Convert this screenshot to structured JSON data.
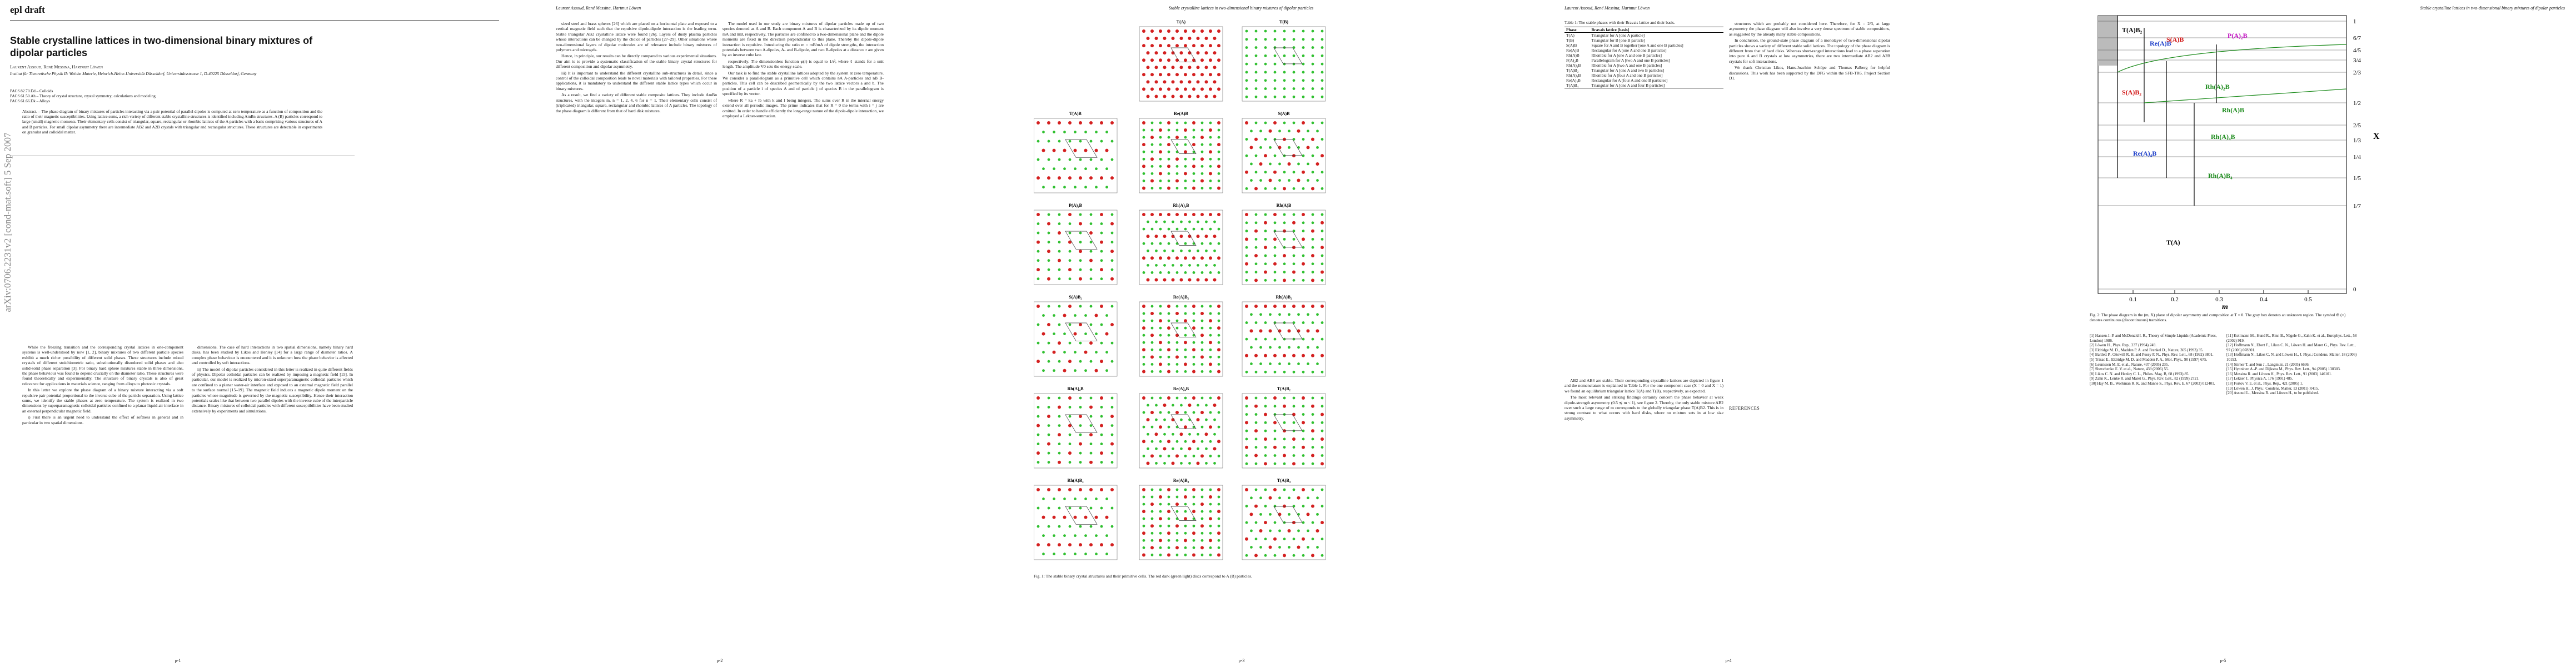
{
  "page1": {
    "running_head": "epl draft",
    "title": "Stable crystalline lattices in two-dimensional binary mixtures of dipolar particles",
    "authors": "Laurent Assoud, René Messina, Hartmut Löwen",
    "affiliation": "Institut für Theoretische Physik II: Weiche Materie, Heinrich-Heine-Universität Düsseldorf, Universitätsstrasse 1, D-40225 Düsseldorf, Germany",
    "pacs": [
      "PACS 82.70.Dd – Colloids",
      "PACS 61.50.Ah – Theory of crystal structure, crystal symmetry; calculations and modeling",
      "PACS 61.66.Dk – Alloys"
    ],
    "abstract": "Abstract. – The phase diagram of binary mixtures of particles interacting via a pair potential of parallel dipoles is computed at zero temperature as a function of composition and the ratio of their magnetic susceptibilities. Using lattice sums, a rich variety of different stable crystalline structures is identified including AmBn structures. A (B) particles correspond to large (small) magnetic moments. Their elementary cells consist of triangular, square, rectangular or rhombic lattices of the A particles with a basis comprising various structures of A and B particles. For small dipolar asymmetry there are intermediate AB2 and A2B crystals with triangular and rectangular structures. These structures are detectable in experiments on granular and colloidal matter.",
    "arxiv": "arXiv:0706.2231v2  [cond-mat.soft]  5 Sep 2007",
    "column1": [
      "While the freezing transition and the corresponding crystal lattices in one-component systems is well-understood by now [1, 2], binary mixtures of two different particle species exhibit a much richer possibility of different solid phases. These structures include mixed crystals of different stoichiometric ratio, substitutionally disordered solid phases and also solid-solid phase separation [3]. For binary hard sphere mixtures stable in three dimensions, the phase behaviour was found to depend crucially on the diameter ratio. These structures were found theoretically and experimentally. The structure of binary crystals is also of great relevance for applications in materials science, ranging from alloys to photonic crystals.",
      "In this letter we explore the phase diagram of a binary mixture interacting via a soft repulsive pair potential proportional to the inverse cube of the particle separation. Using lattice sums, we identify the stable phases at zero temperature. The system is realized in two dimensions by superparamagnetic colloidal particles confined to a planar liquid-air interface in an external perpendicular magnetic field.",
      "i) First there is an urgent need to understand the effect of softness in general and in particular in two spatial dimensions."
    ],
    "column2": [
      "dimensions. The case of hard interactions in two spatial dimensions, namely binary hard disks, has been studied by Likos and Henley [14] for a large range of diameter ratios. A complex phase behaviour is encountered and it is unknown how the phase behavior is affected and controlled by soft interactions.",
      "ii) The model of dipolar particles considered in this letter is realized in quite different fields of physics. Dipolar colloidal particles can be realized by imposing a magnetic field [15]. In particular, our model is realized by micron-sized superparamagnetic colloidal particles which are confined to a planar water-air interface and exposed to an external magnetic field parallel to the surface normal [15–19]. The magnetic field induces a magnetic dipole moment on the particles whose magnitude is governed by the magnetic susceptibility. Hence their interaction potentials scales like that between two parallel dipoles with the inverse cube of the interparticle distance. Binary mixtures of colloidal particles with different susceptibilities have been studied extensively by experiments and simulations."
    ],
    "footer": "p-1"
  },
  "page2": {
    "header": "Laurent Assoud, René Messina, Hartmut Löwen",
    "column1": [
      "sized steel and brass spheres [26] which are placed on a horizontal plate and exposed to a vertical magnetic field such that the repulsive dipole-dipole interaction is the leading term. Stable triangular AB2 crystalline lattice were found [26]. Layers of dusty plasma particles whose interactions can be changed by the choice of particles [27–29]. Other situations where two-dimensional layers of dipolar molecules are of relevance include binary mixtures of polymers and microgels.",
      "Hence, in principle, our results can be directly compared to various experimental situations. Our aim is to provide a systematic classification of the stable binary crystal structures for different composition and dipolar asymmetry.",
      "iii) It is important to understand the different crystalline sub-structures in detail, since a control of the colloidal composition leads to novel materials with tailored properties. For these applications, it is mandatory to understand the different stable lattice types which occur in binary mixtures.",
      "As a result, we find a variety of different stable composite lattices. They include AmBn structures, with the integers m, n = 1, 2, 4, 6 for n = 1. Their elementary cells consist of (triplicated) triangular, square, rectangular and rhombic lattices of A particles. The topology of the phase diagram is different from that of hard disk mixtures."
    ],
    "column2": [
      "The model used in our study are binary mixtures of dipolar particles made up of two species denoted as A and B. Each component A and B is characterized by its dipole moment mA and mB, respectively. The particles are confined to a two-dimensional plane and the dipole moments are fixed in the direction perpendicular to this plane. Thereby the dipole-dipole interaction is repulsive. Introducing the ratio m = mB/mA of dipole strengths, the interaction potentials between two A-dipoles, A- and B-dipole, and two B-dipoles at a distance r are given by an inverse cube law.",
      "respectively. The dimensionless function φ(r) is equal to 1/r³, where ℓ stands for a unit length. The amplitude V0 sets the energy scale.",
      "Our task is to find the stable crystalline lattices adopted by the system at zero temperature. We consider a parallelogram as a primitive cell which contains nA A-particles and nB B-particles. This cell can be described geometrically by the two lattice vectors a and b. The position of a particle i of species A and of particle j of species B in the parallelogram is specified by its vector.",
      "where R = ka + lb with k and l being integers. The sums over R in the internal energy extend over all periodic images. The prime indicates that for R = 0 the terms with i = j are omitted. In order to handle efficiently the long-range nature of the dipole-dipole interaction, we employed a Lekner-summation."
    ],
    "footer": "p-2"
  },
  "page3": {
    "header": "Stable crystalline lattices in two-dimensional binary mixtures of dipolar particles",
    "panels": [
      "T(A)",
      "T(B)",
      "T(A)B",
      "Re(A)B",
      "S(A)B",
      "P(A)₂B",
      "Rh(A)₂B",
      "Rh(A)B",
      "S(A)B₂",
      "Re(A)B₂",
      "Rh(A)B₂",
      "Rh(A)₄B",
      "Re(A)₄B",
      "T(A)B₂",
      "Rh(A)B₄",
      "Re(A)B₄",
      "T(A)B₄"
    ],
    "caption": "Fig. 1: The stable binary crystal structures and their primitive cells. The red dark (green light) discs correspond to A (B) particles.",
    "footer": "p-3"
  },
  "page4": {
    "header": "Laurent Assoud, René Messina, Hartmut Löwen",
    "table": {
      "caption": "Table 1: The stable phases with their Bravais lattice and their basis.",
      "head": [
        "Phase",
        "Bravais lattice [basis]"
      ],
      "rows": [
        [
          "T(A)",
          "Triangular for A [one A particle]"
        ],
        [
          "T(B)",
          "Triangular for B [one B particle]"
        ],
        [
          "S(A)B",
          "Square for A and B together [one A and one B particles]"
        ],
        [
          "Re(A)B",
          "Rectangular for A [one A and one B particles]"
        ],
        [
          "Rh(A)B",
          "Rhombic for A [one A and one B particles]"
        ],
        [
          "P(A)₂B",
          "Parallelogram for A [two A and one B particles]"
        ],
        [
          "Rh(A)₂B",
          "Rhombic for A [two A and one B particles]"
        ],
        [
          "T(A)B₂",
          "Triangular for A [one A and two B particles]"
        ],
        [
          "Rh(A)₄B",
          "Rhombic for A [four A and one B particles]"
        ],
        [
          "Re(A)₄B",
          "Rectangular for A [four A and one B particles]"
        ],
        [
          "T(A)B₄",
          "Triangular for A [one A and four B particles]"
        ]
      ]
    },
    "column1": [
      "AB2 and AB4 are stable. Their corresponding crystalline lattices are depicted in figure 1 and the nomenclature is explained in Table 1. For the one component case (X = 0 and X = 1) we found an equilibrium triangular lattice T(A) and T(B), respectively, as expected.",
      "The most relevant and striking findings certainly concern the phase behavior at weak dipole-strength asymmetry (0.5 ≲ m < 1), see figure 2. Thereby, the only stable mixture AB2 over such a large range of m corresponds to the globally triangular phase T(A)B2. This is in strong contrast to what occurs with hard disks, where no mixture sets in at low size asymmetry."
    ],
    "column2": [
      "structures which are probably not considered here. Therefore, for X = 2/3, at large asymmetry the phase diagram will also involve a very dense spectrum of stable compositions, as suggested by the already many stable compositions.",
      "In conclusion, the ground-state phase diagram of a monolayer of two-dimensional dipolar particles shows a variety of different stable solid lattices. The topology of the phase diagram is different from that of hard disks. Whereas short-ranged interactions lead to a phase separation into pure A and B crystals at low asymmetries, there are two intermediate AB2 and A2B crystals for soft interactions.",
      "We thank Christian Likos, Hans-Joachim Schöpe and Thomas Palberg for helpful discussions. This work has been supported by the DFG within the SFB-TR6, Project Section D1."
    ],
    "references_heading": "REFERENCES",
    "footer": "p-4"
  },
  "page5": {
    "header": "Stable crystalline lattices in two-dimensional binary mixtures of dipolar particles",
    "figure": {
      "x_ticks": [
        "0.1",
        "0.2",
        "0.3",
        "0.4",
        "0.5"
      ],
      "x_label": "m",
      "y_ticks": [
        "1",
        "6/7",
        "4/5",
        "3/4",
        "2/3",
        "1/2",
        "2/5",
        "1/3",
        "1/4",
        "1/5",
        "1/7",
        "0"
      ],
      "y_label": "X",
      "regions": [
        {
          "label": "T(A)B₂",
          "color": "#000000"
        },
        {
          "label": "Re(A)B",
          "color": "#1a3cc8"
        },
        {
          "label": "S(A)B",
          "color": "#d01010"
        },
        {
          "label": "P(A)₂B",
          "color": "#c010c0"
        },
        {
          "label": "Rh(A)₂B",
          "color": "#1a8a1a"
        },
        {
          "label": "Rh(A)B",
          "color": "#1a8a1a"
        },
        {
          "label": "S(A)B₂",
          "color": "#d01010"
        },
        {
          "label": "Rh(A)₄B",
          "color": "#1a8a1a"
        },
        {
          "label": "Re(A)₄B",
          "color": "#1a3cc8"
        },
        {
          "label": "Rh(A)B₄",
          "color": "#1a8a1a"
        },
        {
          "label": "T(A)",
          "color": "#000000"
        }
      ]
    },
    "caption": "Fig. 2: The phase diagram in the (m, X) plane of dipolar asymmetry and composition at T = 0. The gray box denotes an unknown region. The symbol ⊕ (=) denotes continuous (discontinuous) transitions.",
    "references_col1": [
      "[1] Hansen J.-P. and McDonald I. R., Theory of Simple Liquids (Academic Press, London) 1986.",
      "[2] Löwen H., Phys. Rep., 237 (1994) 249.",
      "[3] Eldridge M. D., Madden P. A. and Frenkel D., Nature, 365 (1993) 35.",
      "[4] Bartlett P., Ottewill R. H. and Pusey P. N., Phys. Rev. Lett., 68 (1992) 3801.",
      "[5] Trizac E., Eldridge M. D. and Madden P. A., Mol. Phys., 90 (1997) 675.",
      "[6] Leunissen M. E. et al., Nature, 437 (2005) 235.",
      "[7] Shevchenko E. V. et al., Nature, 439 (2006) 55.",
      "[8] Likos C. N. and Henley C. L., Philos. Mag. B, 68 (1993) 85.",
      "[9] Zahn K., Lenke R. and Maret G., Phys. Rev. Lett., 82 (1999) 2721.",
      "[10] Hay M. B., Workman R. K. and Manne S., Phys. Rev. E, 67 (2003) 012401."
    ],
    "references_col2": [
      "[11] Kollmann M., Hund R., Rinn B., Nägele G., Zahn K. et al., Europhys. Lett., 58 (2002) 919.",
      "[12] Hoffmann N., Ebert F., Likos C. N., Löwen H. and Maret G., Phys. Rev. Lett., 97 (2006) 078301.",
      "[13] Hoffmann N., Likos C. N. and Löwen H., J. Phys.: Condens. Matter, 18 (2006) 10193.",
      "[14] Stirner T. and Sun J., Langmuir, 21 (2005) 6636.",
      "[15] Hynninen A.-P. and Dijkstra M., Phys. Rev. Lett., 94 (2005) 138303.",
      "[16] Messina R. and Löwen H., Phys. Rev. Lett., 91 (2003) 146101.",
      "[17] Lekner J., Physica A, 176 (1991) 485.",
      "[18] Fortov V. E. et al., Phys. Rep., 421 (2005) 1.",
      "[19] Löwen H., J. Phys.: Condens. Matter, 13 (2001) R415.",
      "[20] Assoud L., Messina R. and Löwen H., to be published."
    ],
    "footer": "p-5"
  }
}
